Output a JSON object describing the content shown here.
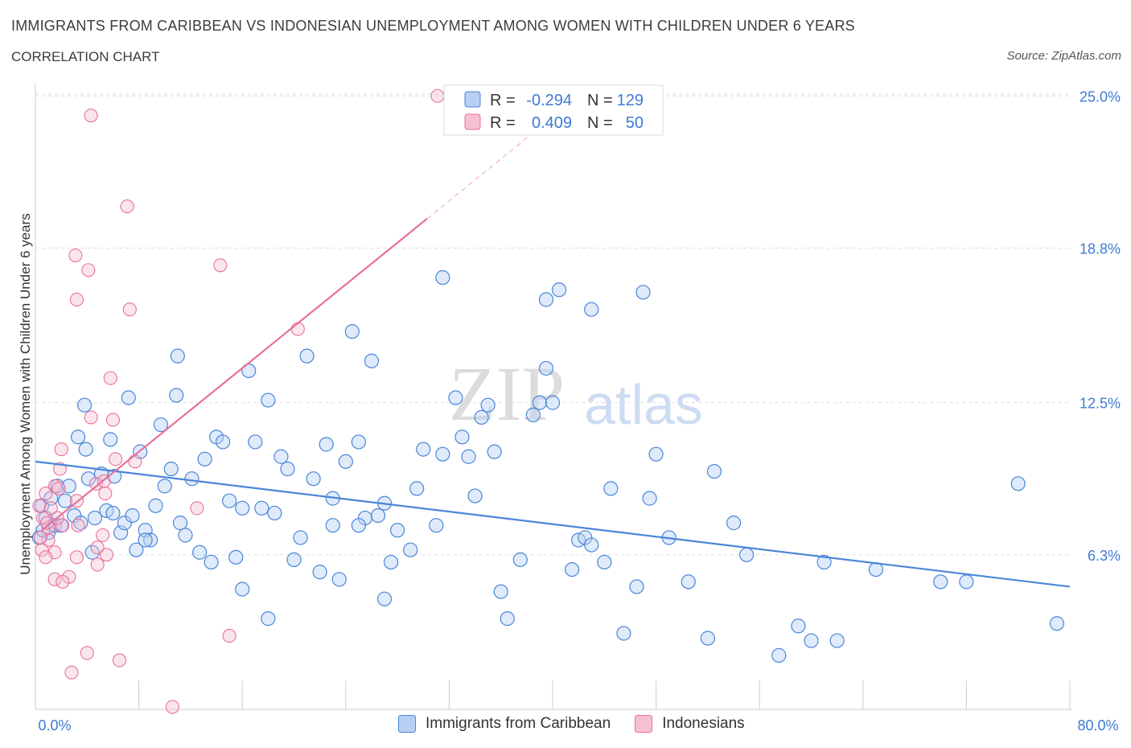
{
  "title": "IMMIGRANTS FROM CARIBBEAN VS INDONESIAN UNEMPLOYMENT AMONG WOMEN WITH CHILDREN UNDER 6 YEARS",
  "subtitle": "CORRELATION CHART",
  "source": "Source: ZipAtlas.com",
  "watermark": {
    "zip": "ZIP",
    "atlas": "atlas"
  },
  "colors": {
    "blue": "#4a86d8",
    "blue_fill": "#b8d0f3",
    "pink": "#e8709a",
    "pink_fill": "#f6bfd2",
    "axis_label": "#3d7bd4"
  },
  "stats": [
    {
      "r_label": "R =",
      "r": "-0.294",
      "n_label": "N =",
      "n": "129"
    },
    {
      "r_label": "R =",
      "r": "0.409",
      "n_label": "N =",
      "n": "50"
    }
  ],
  "legend": [
    "Immigrants from Caribbean",
    "Indonesians"
  ],
  "chart_data": {
    "type": "scatter",
    "ylabel": "Unemployment Among Women with Children Under 6 years",
    "xlim": [
      0,
      80
    ],
    "ylim": [
      0,
      25.5
    ],
    "x_tick_labels": [
      "0.0%",
      "80.0%"
    ],
    "y_ticks": [
      6.3,
      12.5,
      18.8,
      25.0
    ],
    "y_tick_labels": [
      "6.3%",
      "12.5%",
      "18.8%",
      "25.0%"
    ],
    "grid": true,
    "series": [
      {
        "name": "Immigrants from Caribbean",
        "color": "#4a86d8",
        "trend": {
          "x": [
            0,
            80
          ],
          "y": [
            10.1,
            5.0
          ]
        },
        "points": [
          [
            0.5,
            8.3
          ],
          [
            0.8,
            7.8
          ],
          [
            1.0,
            7.2
          ],
          [
            1.2,
            8.6
          ],
          [
            1.5,
            7.5
          ],
          [
            1.7,
            9.1
          ],
          [
            2.0,
            7.5
          ],
          [
            2.3,
            8.5
          ],
          [
            2.6,
            9.1
          ],
          [
            3.0,
            7.9
          ],
          [
            3.3,
            11.1
          ],
          [
            3.5,
            7.6
          ],
          [
            3.9,
            10.6
          ],
          [
            4.1,
            9.4
          ],
          [
            4.4,
            6.4
          ],
          [
            4.6,
            7.8
          ],
          [
            5.1,
            9.6
          ],
          [
            5.5,
            8.1
          ],
          [
            5.8,
            11.0
          ],
          [
            6.1,
            9.5
          ],
          [
            6.6,
            7.2
          ],
          [
            6.9,
            7.6
          ],
          [
            7.2,
            12.7
          ],
          [
            7.5,
            7.9
          ],
          [
            7.8,
            6.5
          ],
          [
            8.1,
            10.5
          ],
          [
            8.5,
            7.3
          ],
          [
            8.9,
            6.9
          ],
          [
            9.3,
            8.3
          ],
          [
            9.7,
            11.6
          ],
          [
            10.0,
            9.1
          ],
          [
            10.5,
            9.8
          ],
          [
            10.9,
            12.8
          ],
          [
            11.2,
            7.6
          ],
          [
            11.6,
            7.1
          ],
          [
            12.1,
            9.4
          ],
          [
            12.7,
            6.4
          ],
          [
            13.1,
            10.2
          ],
          [
            13.6,
            6.0
          ],
          [
            14.0,
            11.1
          ],
          [
            14.5,
            10.9
          ],
          [
            15.0,
            8.5
          ],
          [
            15.5,
            6.2
          ],
          [
            16.0,
            4.9
          ],
          [
            16.5,
            13.8
          ],
          [
            17.0,
            10.9
          ],
          [
            17.5,
            8.2
          ],
          [
            18.0,
            3.7
          ],
          [
            18.5,
            8.0
          ],
          [
            19.0,
            10.3
          ],
          [
            19.5,
            9.8
          ],
          [
            20.0,
            6.1
          ],
          [
            20.5,
            7.0
          ],
          [
            21.0,
            14.4
          ],
          [
            21.5,
            9.4
          ],
          [
            22.0,
            5.6
          ],
          [
            22.5,
            10.8
          ],
          [
            23.0,
            7.5
          ],
          [
            23.5,
            5.3
          ],
          [
            24.0,
            10.1
          ],
          [
            24.5,
            15.4
          ],
          [
            25.0,
            10.9
          ],
          [
            25.5,
            7.8
          ],
          [
            26.0,
            14.2
          ],
          [
            26.5,
            7.9
          ],
          [
            27.0,
            4.5
          ],
          [
            27.5,
            6.0
          ],
          [
            28.0,
            7.3
          ],
          [
            29.0,
            6.5
          ],
          [
            29.5,
            9.0
          ],
          [
            30.0,
            10.6
          ],
          [
            31.0,
            7.5
          ],
          [
            31.5,
            10.4
          ],
          [
            32.5,
            12.7
          ],
          [
            33.0,
            11.1
          ],
          [
            33.5,
            10.3
          ],
          [
            34.0,
            8.7
          ],
          [
            34.5,
            11.9
          ],
          [
            35.0,
            12.4
          ],
          [
            35.5,
            10.5
          ],
          [
            36.0,
            4.8
          ],
          [
            36.5,
            3.7
          ],
          [
            37.5,
            6.1
          ],
          [
            38.5,
            12.0
          ],
          [
            39.0,
            12.5
          ],
          [
            39.5,
            16.7
          ],
          [
            40.0,
            12.5
          ],
          [
            40.5,
            17.1
          ],
          [
            41.5,
            5.7
          ],
          [
            42.0,
            6.9
          ],
          [
            42.5,
            7.0
          ],
          [
            43.0,
            6.7
          ],
          [
            44.0,
            6.0
          ],
          [
            44.5,
            9.0
          ],
          [
            45.5,
            3.1
          ],
          [
            46.5,
            5.0
          ],
          [
            47.0,
            17.0
          ],
          [
            47.5,
            8.6
          ],
          [
            48.0,
            10.4
          ],
          [
            49.0,
            7.0
          ],
          [
            50.5,
            5.2
          ],
          [
            52.0,
            2.9
          ],
          [
            52.5,
            9.7
          ],
          [
            54.0,
            7.6
          ],
          [
            55.0,
            6.3
          ],
          [
            57.5,
            2.2
          ],
          [
            59.0,
            3.4
          ],
          [
            60.0,
            2.8
          ],
          [
            61.0,
            6.0
          ],
          [
            62.0,
            2.8
          ],
          [
            65.0,
            5.7
          ],
          [
            70.0,
            5.2
          ],
          [
            72.0,
            5.2
          ],
          [
            76.0,
            9.2
          ],
          [
            79.0,
            3.5
          ],
          [
            43.0,
            16.3
          ],
          [
            31.5,
            17.6
          ],
          [
            8.5,
            6.9
          ],
          [
            11.0,
            14.4
          ],
          [
            3.8,
            12.4
          ],
          [
            6.0,
            8.0
          ],
          [
            16.0,
            8.2
          ],
          [
            0.3,
            7.0
          ],
          [
            0.6,
            7.3
          ],
          [
            27.0,
            8.4
          ],
          [
            23.0,
            8.6
          ],
          [
            18.0,
            12.6
          ],
          [
            25.0,
            7.5
          ],
          [
            39.5,
            13.9
          ]
        ]
      },
      {
        "name": "Indonesians",
        "color": "#e8709a",
        "trend": {
          "x": [
            0.5,
            30.3
          ],
          "y": [
            7.3,
            20.0
          ]
        },
        "points": [
          [
            31.1,
            25.0
          ],
          [
            4.3,
            24.2
          ],
          [
            7.1,
            20.5
          ],
          [
            3.1,
            18.5
          ],
          [
            4.1,
            17.9
          ],
          [
            14.3,
            18.1
          ],
          [
            3.2,
            16.7
          ],
          [
            7.3,
            16.3
          ],
          [
            20.3,
            15.5
          ],
          [
            5.8,
            13.5
          ],
          [
            6.0,
            11.8
          ],
          [
            4.3,
            11.9
          ],
          [
            2.0,
            10.6
          ],
          [
            6.2,
            10.2
          ],
          [
            7.7,
            10.1
          ],
          [
            1.9,
            9.8
          ],
          [
            4.7,
            9.2
          ],
          [
            5.3,
            9.3
          ],
          [
            1.5,
            9.1
          ],
          [
            1.8,
            9.0
          ],
          [
            0.8,
            8.8
          ],
          [
            5.4,
            8.8
          ],
          [
            0.3,
            8.3
          ],
          [
            1.2,
            8.2
          ],
          [
            3.2,
            8.5
          ],
          [
            12.5,
            8.2
          ],
          [
            0.6,
            7.8
          ],
          [
            1.0,
            7.4
          ],
          [
            2.1,
            7.5
          ],
          [
            3.3,
            7.5
          ],
          [
            5.2,
            7.1
          ],
          [
            1.0,
            6.9
          ],
          [
            4.8,
            6.6
          ],
          [
            0.5,
            6.5
          ],
          [
            1.5,
            6.4
          ],
          [
            0.8,
            6.2
          ],
          [
            3.2,
            6.2
          ],
          [
            5.5,
            6.3
          ],
          [
            4.8,
            5.9
          ],
          [
            1.5,
            5.3
          ],
          [
            2.6,
            5.4
          ],
          [
            2.1,
            5.2
          ],
          [
            15.0,
            3.0
          ],
          [
            4.0,
            2.3
          ],
          [
            6.5,
            2.0
          ],
          [
            2.8,
            1.5
          ],
          [
            10.6,
            0.1
          ],
          [
            0.4,
            7.0
          ],
          [
            1.7,
            7.8
          ],
          [
            0.9,
            7.6
          ]
        ]
      }
    ]
  }
}
